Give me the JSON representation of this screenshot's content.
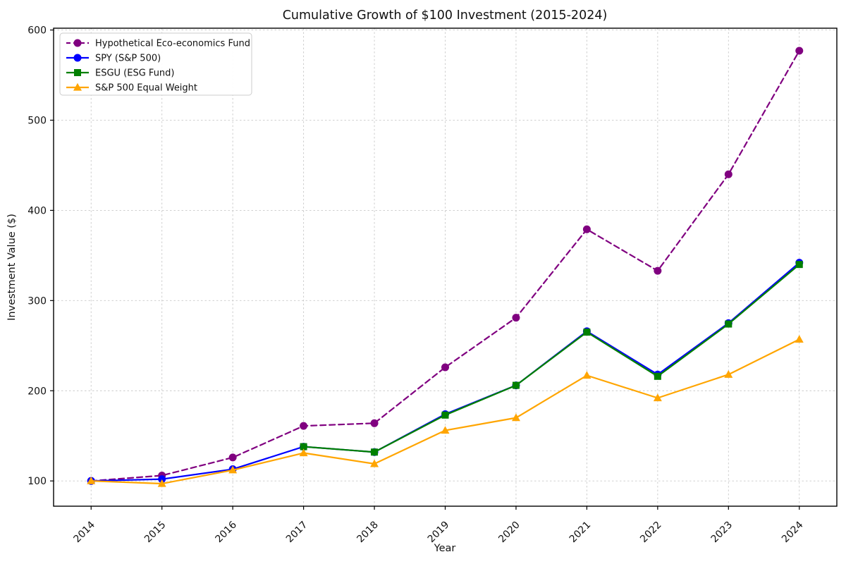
{
  "figure": {
    "background": "#ffffff",
    "grid_color": "#c9c9c9",
    "spine_color": "#000000"
  },
  "chart_data": {
    "type": "line",
    "title": "Cumulative Growth of $100 Investment (2015-2024)",
    "xlabel": "Year",
    "ylabel": "Investment Value ($)",
    "x": [
      2014,
      2015,
      2016,
      2017,
      2018,
      2019,
      2020,
      2021,
      2022,
      2023,
      2024
    ],
    "yticks": [
      100,
      200,
      300,
      400,
      500,
      600
    ],
    "xlim": [
      2013.47,
      2024.53
    ],
    "ylim": [
      72,
      602
    ],
    "grid": true,
    "legend_position": "upper left",
    "series": [
      {
        "name": "Hypothetical Eco-economics Fund",
        "color": "#800080",
        "marker": "circle",
        "line_style": "dashed",
        "values": [
          100,
          106,
          126,
          161,
          164,
          226,
          281,
          379,
          333,
          440,
          577
        ]
      },
      {
        "name": "SPY (S&P 500)",
        "color": "#0000ff",
        "marker": "circle",
        "line_style": "solid",
        "values": [
          100,
          102,
          113,
          138,
          132,
          174,
          206,
          266,
          218,
          275,
          342
        ]
      },
      {
        "name": "ESGU (ESG Fund)",
        "color": "#008000",
        "marker": "square",
        "line_style": "solid",
        "values": [
          null,
          null,
          null,
          138,
          132,
          173,
          206,
          265,
          216,
          274,
          340
        ]
      },
      {
        "name": "S&P 500 Equal Weight",
        "color": "#ffa500",
        "marker": "triangle",
        "line_style": "solid",
        "values": [
          100,
          97,
          112,
          131,
          119,
          156,
          170,
          217,
          192,
          218,
          257
        ]
      }
    ]
  }
}
